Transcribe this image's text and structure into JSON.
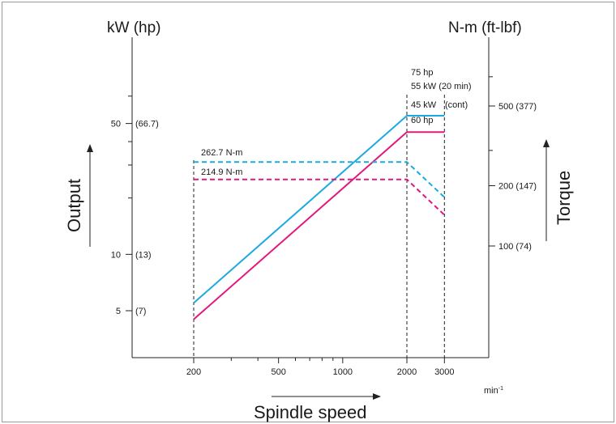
{
  "chart_data": {
    "type": "line",
    "x_scale": "log",
    "y_scale": "log",
    "xlabel": "Spindle speed",
    "x_unit": "min-1",
    "x_ticks": [
      200,
      500,
      1000,
      2000,
      3000
    ],
    "left_axis": {
      "unit_title": "kW (hp)",
      "title": "Output",
      "ticks": [
        {
          "value": 5,
          "label": "5",
          "sub": "(7)"
        },
        {
          "value": 10,
          "label": "10",
          "sub": "(13)"
        },
        {
          "value": 50,
          "label": "50",
          "sub": "(66.7)"
        }
      ]
    },
    "right_axis": {
      "unit_title": "N-m (ft-lbf)",
      "title": "Torque",
      "ticks": [
        {
          "value": 100,
          "label": "100 (74)"
        },
        {
          "value": 200,
          "label": "200 (147)"
        },
        {
          "value": 500,
          "label": "500 (377)"
        }
      ]
    },
    "series": [
      {
        "kind": "output",
        "color": "#1ba9e1",
        "dashed": false,
        "x": [
          200,
          2000,
          3000
        ],
        "y": [
          5.5,
          55,
          55
        ]
      },
      {
        "kind": "output",
        "color": "#e2187c",
        "dashed": false,
        "x": [
          200,
          2000,
          3000
        ],
        "y": [
          4.5,
          45,
          45
        ]
      },
      {
        "kind": "torque",
        "color": "#1ba9e1",
        "dashed": true,
        "x": [
          200,
          2000,
          3000
        ],
        "y": [
          262.7,
          262.7,
          175
        ]
      },
      {
        "kind": "torque",
        "color": "#e2187c",
        "dashed": true,
        "x": [
          200,
          2000,
          3000
        ],
        "y": [
          214.9,
          214.9,
          143
        ]
      }
    ],
    "annotations": {
      "torque_blue": "262.7 N-m",
      "torque_magenta": "214.9 N-m",
      "hp_high": "75 hp",
      "kw_high": "55 kW (20 min)",
      "kw_cont": "45 kW",
      "cont": "(cont)",
      "hp_low": "60 hp"
    },
    "guides_at_x": [
      200,
      2000,
      3000
    ]
  }
}
